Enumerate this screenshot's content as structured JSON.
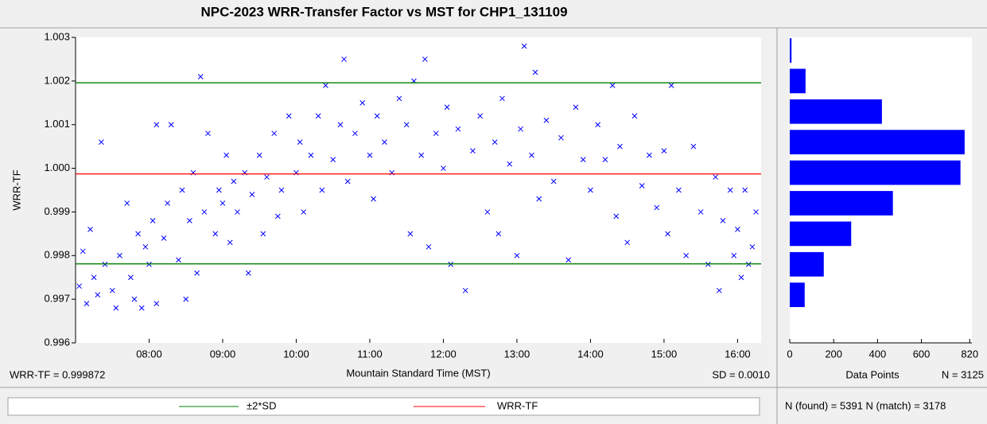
{
  "chart_data": [
    {
      "type": "scatter",
      "title": "NPC-2023 WRR-Transfer Factor vs MST for CHP1_131109",
      "xlabel": "Mountain Standard Time (MST)",
      "ylabel": "WRR-TF",
      "annotations": [
        "WRR-TF = 0.999872",
        "SD = 0.0010"
      ],
      "color": "#0000ff",
      "xlim": [
        7.0,
        16.32
      ],
      "xticks": [
        {
          "value": 8,
          "label": "08:00"
        },
        {
          "value": 9,
          "label": "09:00"
        },
        {
          "value": 10,
          "label": "10:00"
        },
        {
          "value": 11,
          "label": "11:00"
        },
        {
          "value": 12,
          "label": "12:00"
        },
        {
          "value": 13,
          "label": "13:00"
        },
        {
          "value": 14,
          "label": "14:00"
        },
        {
          "value": 15,
          "label": "15:00"
        },
        {
          "value": 16,
          "label": "16:00"
        }
      ],
      "ylim": [
        0.996,
        1.003
      ],
      "yticks": [
        0.996,
        0.997,
        0.998,
        0.999,
        {
          "value": 1.0,
          "label": "1.000"
        },
        1.001,
        1.002,
        1.003
      ],
      "hlines": [
        {
          "name": "±2*SD",
          "color": "#008000",
          "values": [
            1.00196,
            0.99781
          ]
        },
        {
          "name": "WRR-TF",
          "color": "#ff0000",
          "values": [
            0.999872
          ]
        }
      ],
      "x": [
        7.05,
        7.1,
        7.15,
        7.2,
        7.25,
        7.3,
        7.35,
        7.4,
        7.5,
        7.55,
        7.6,
        7.7,
        7.75,
        7.8,
        7.85,
        7.9,
        7.95,
        8.0,
        8.05,
        8.1,
        8.1,
        8.2,
        8.25,
        8.3,
        8.4,
        8.45,
        8.5,
        8.55,
        8.6,
        8.65,
        8.7,
        8.75,
        8.8,
        8.9,
        8.95,
        9.0,
        9.05,
        9.1,
        9.15,
        9.2,
        9.3,
        9.35,
        9.4,
        9.5,
        9.55,
        9.6,
        9.7,
        9.75,
        9.8,
        9.9,
        10.0,
        10.05,
        10.1,
        10.2,
        10.3,
        10.35,
        10.4,
        10.5,
        10.6,
        10.65,
        10.7,
        10.8,
        10.9,
        11.0,
        11.05,
        11.1,
        11.2,
        11.3,
        11.4,
        11.5,
        11.55,
        11.6,
        11.7,
        11.75,
        11.8,
        11.9,
        12.0,
        12.05,
        12.1,
        12.2,
        12.3,
        12.4,
        12.5,
        12.6,
        12.7,
        12.75,
        12.8,
        12.9,
        13.0,
        13.05,
        13.1,
        13.2,
        13.25,
        13.3,
        13.4,
        13.5,
        13.6,
        13.7,
        13.8,
        13.9,
        14.0,
        14.1,
        14.2,
        14.3,
        14.35,
        14.4,
        14.5,
        14.6,
        14.7,
        14.8,
        14.9,
        15.0,
        15.05,
        15.1,
        15.2,
        15.3,
        15.4,
        15.5,
        15.6,
        15.7,
        15.75,
        15.8,
        15.9,
        15.95,
        16.0,
        16.05,
        16.1,
        16.15,
        16.2,
        16.25
      ],
      "y": [
        0.9973,
        0.9981,
        0.9969,
        0.9986,
        0.9975,
        0.9971,
        1.0006,
        0.9978,
        0.9972,
        0.9968,
        0.998,
        0.9992,
        0.9975,
        0.997,
        0.9985,
        0.9968,
        0.9982,
        0.9978,
        0.9988,
        0.9969,
        1.001,
        0.9984,
        0.9992,
        1.001,
        0.9979,
        0.9995,
        0.997,
        0.9988,
        0.9999,
        0.9976,
        1.0021,
        0.999,
        1.0008,
        0.9985,
        0.9995,
        0.9992,
        1.0003,
        0.9983,
        0.9997,
        0.999,
        0.9999,
        0.9976,
        0.9994,
        1.0003,
        0.9985,
        0.9998,
        1.0008,
        0.9989,
        0.9995,
        1.0012,
        0.9999,
        1.0006,
        0.999,
        1.0003,
        1.0012,
        0.9995,
        1.0019,
        1.0002,
        1.001,
        1.0025,
        0.9997,
        1.0008,
        1.0015,
        1.0003,
        0.9993,
        1.0012,
        1.0006,
        0.9999,
        1.0016,
        1.001,
        0.9985,
        1.002,
        1.0003,
        1.0025,
        0.9982,
        1.0008,
        1.0,
        1.0014,
        0.9978,
        1.0009,
        0.9972,
        1.0004,
        1.0012,
        0.999,
        1.0006,
        0.9985,
        1.0016,
        1.0001,
        0.998,
        1.0009,
        1.0028,
        1.0003,
        1.0022,
        0.9993,
        1.0011,
        0.9997,
        1.0007,
        0.9979,
        1.0014,
        1.0002,
        0.9995,
        1.001,
        1.0002,
        1.0019,
        0.9989,
        1.0005,
        0.9983,
        1.0012,
        0.9996,
        1.0003,
        0.9991,
        1.0004,
        0.9985,
        1.0019,
        0.9995,
        0.998,
        1.0005,
        0.999,
        0.9978,
        0.9998,
        0.9972,
        0.9988,
        0.9995,
        0.998,
        0.9986,
        0.9975,
        0.9995,
        0.9978,
        0.9982,
        0.999
      ]
    },
    {
      "type": "histogram",
      "xlabel": "Data Points",
      "annotation": "N = 3125",
      "color": "#0000ff",
      "xlim": [
        0,
        830
      ],
      "xticks": [
        0,
        200,
        400,
        600,
        820
      ],
      "bins": [
        1.00305,
        1.00235,
        1.00165,
        1.00095,
        1.00025,
        0.99955,
        0.99885,
        0.99815,
        0.99745,
        0.99675
      ],
      "counts": [
        8,
        72,
        420,
        797,
        778,
        470,
        280,
        155,
        68
      ]
    }
  ],
  "footer": "N (found) = 5391  N (match) = 3178"
}
